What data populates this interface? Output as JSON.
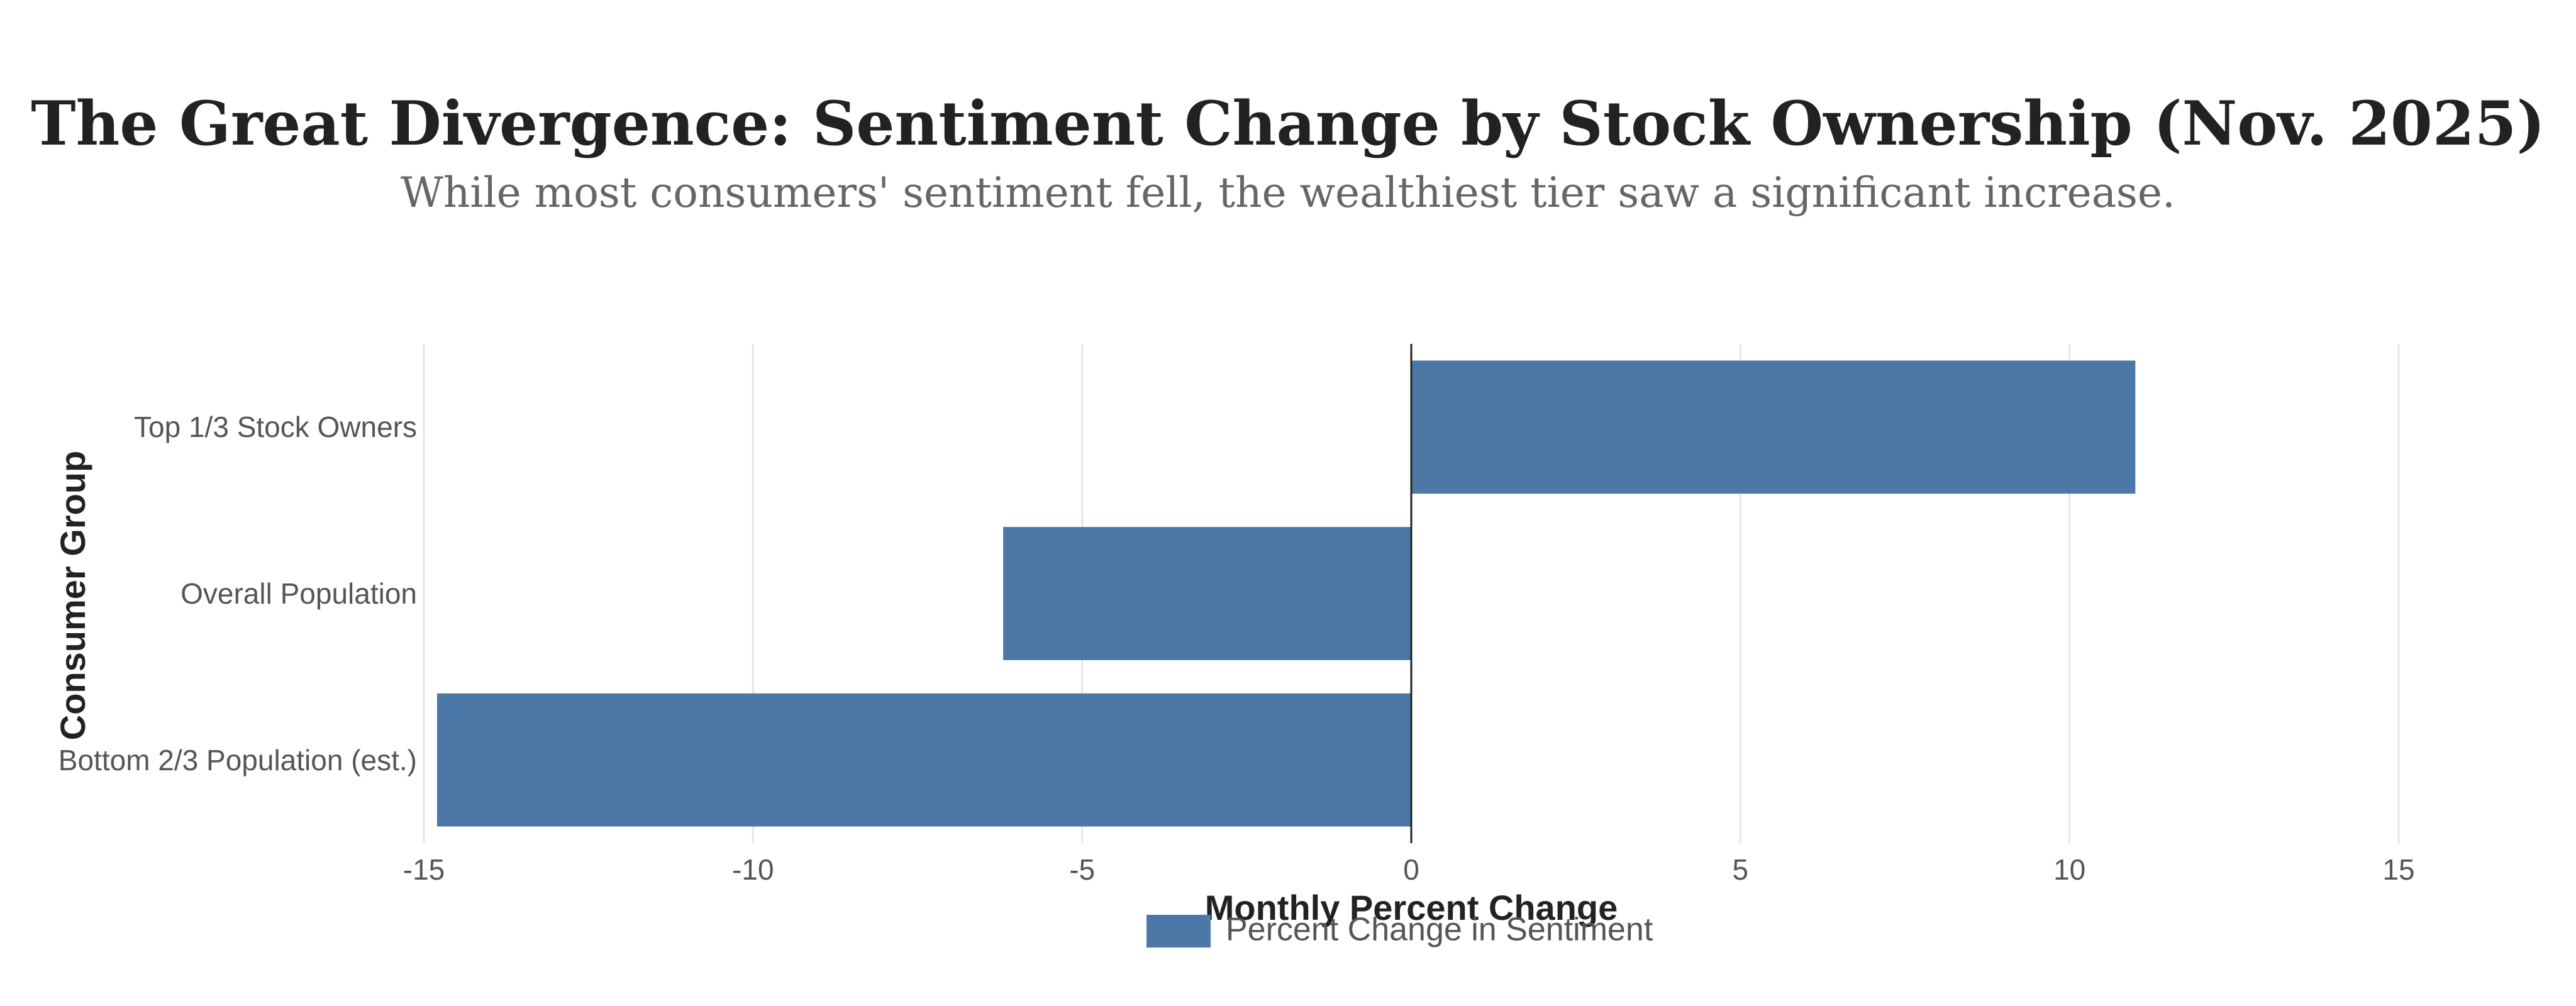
{
  "chart_data": {
    "type": "hbar",
    "title": "The Great Divergence: Sentiment Change by Stock Ownership (Nov. 2025)",
    "subtitle": "While most consumers' sentiment fell, the wealthiest tier saw a significant increase.",
    "x_label": "Monthly Percent Change",
    "y_label": "Consumer Group",
    "categories": [
      "Top 1/3 Stock Owners",
      "Overall Population",
      "Bottom 2/3 Population (est.)"
    ],
    "series": [
      {
        "name": "Percent Change in Sentiment",
        "color": "#4c78a8",
        "values": [
          11.0,
          -6.2,
          -14.8
        ]
      }
    ],
    "xlim": [
      -15,
      15
    ],
    "xticks": [
      -15,
      -10,
      -5,
      0,
      5,
      10,
      15
    ],
    "grid": true
  }
}
